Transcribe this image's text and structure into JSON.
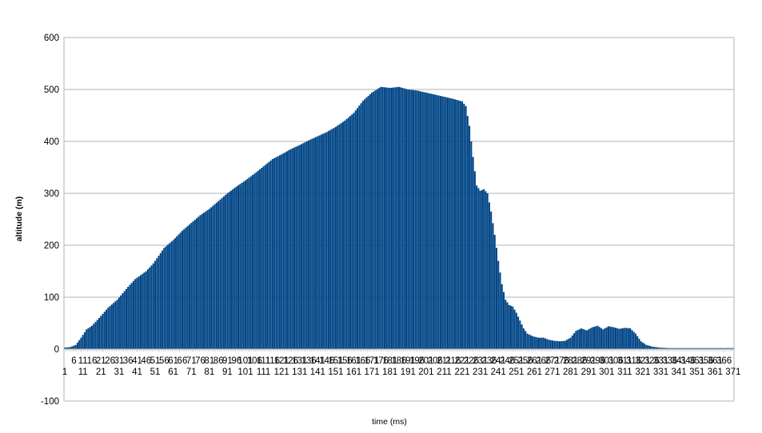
{
  "chart_data": {
    "type": "bar",
    "title": "",
    "xlabel": "time (ms)",
    "ylabel": "altitude (m)",
    "ylim": [
      -100,
      600
    ],
    "yticks": [
      -100,
      0,
      100,
      200,
      300,
      400,
      500,
      600
    ],
    "grid": true,
    "legend": "none",
    "bar_color": "#004586",
    "x": {
      "start": 1,
      "end": 371,
      "step": 1
    },
    "x_tick_labels_row1": [
      6,
      11,
      16,
      21,
      26,
      31,
      36,
      41,
      46,
      51,
      56,
      61,
      66,
      71,
      76,
      81,
      86,
      91,
      96,
      101,
      106,
      111,
      116,
      121,
      126,
      131,
      136,
      141,
      146,
      151,
      156,
      161,
      166,
      171,
      176,
      181,
      186,
      191,
      196,
      201,
      206,
      211,
      216,
      221,
      226,
      231,
      236,
      241,
      246,
      251,
      256,
      261,
      266,
      271,
      276,
      281,
      286,
      291,
      296,
      301,
      306,
      311,
      316,
      321,
      326,
      331,
      336,
      341,
      346,
      351,
      356,
      361,
      366
    ],
    "x_tick_labels_row2": [
      1,
      11,
      21,
      31,
      41,
      51,
      61,
      71,
      81,
      91,
      101,
      111,
      121,
      131,
      141,
      151,
      161,
      171,
      181,
      191,
      201,
      211,
      221,
      231,
      241,
      251,
      261,
      271,
      281,
      291,
      301,
      311,
      321,
      331,
      341,
      351,
      361,
      371
    ],
    "key_points": [
      [
        1,
        3
      ],
      [
        4,
        4
      ],
      [
        7,
        8
      ],
      [
        10,
        22
      ],
      [
        13,
        38
      ],
      [
        16,
        45
      ],
      [
        20,
        60
      ],
      [
        25,
        80
      ],
      [
        30,
        95
      ],
      [
        36,
        120
      ],
      [
        40,
        135
      ],
      [
        46,
        150
      ],
      [
        50,
        165
      ],
      [
        56,
        195
      ],
      [
        61,
        210
      ],
      [
        66,
        228
      ],
      [
        71,
        243
      ],
      [
        76,
        258
      ],
      [
        81,
        270
      ],
      [
        86,
        285
      ],
      [
        91,
        300
      ],
      [
        96,
        313
      ],
      [
        101,
        325
      ],
      [
        106,
        338
      ],
      [
        111,
        352
      ],
      [
        116,
        366
      ],
      [
        121,
        375
      ],
      [
        126,
        385
      ],
      [
        131,
        393
      ],
      [
        136,
        402
      ],
      [
        141,
        410
      ],
      [
        146,
        418
      ],
      [
        151,
        428
      ],
      [
        156,
        440
      ],
      [
        161,
        455
      ],
      [
        166,
        478
      ],
      [
        171,
        494
      ],
      [
        176,
        505
      ],
      [
        181,
        503
      ],
      [
        186,
        505
      ],
      [
        191,
        500
      ],
      [
        196,
        498
      ],
      [
        201,
        494
      ],
      [
        206,
        490
      ],
      [
        211,
        486
      ],
      [
        216,
        482
      ],
      [
        221,
        477
      ],
      [
        223,
        468
      ],
      [
        225,
        430
      ],
      [
        227,
        370
      ],
      [
        229,
        315
      ],
      [
        231,
        305
      ],
      [
        233,
        308
      ],
      [
        235,
        300
      ],
      [
        237,
        265
      ],
      [
        239,
        220
      ],
      [
        241,
        170
      ],
      [
        243,
        125
      ],
      [
        245,
        95
      ],
      [
        247,
        85
      ],
      [
        249,
        82
      ],
      [
        251,
        70
      ],
      [
        253,
        55
      ],
      [
        255,
        40
      ],
      [
        257,
        30
      ],
      [
        260,
        25
      ],
      [
        263,
        22
      ],
      [
        266,
        22
      ],
      [
        269,
        18
      ],
      [
        272,
        16
      ],
      [
        275,
        15
      ],
      [
        278,
        16
      ],
      [
        281,
        22
      ],
      [
        284,
        35
      ],
      [
        287,
        40
      ],
      [
        290,
        36
      ],
      [
        293,
        42
      ],
      [
        296,
        45
      ],
      [
        299,
        38
      ],
      [
        302,
        44
      ],
      [
        305,
        42
      ],
      [
        308,
        39
      ],
      [
        311,
        41
      ],
      [
        314,
        40
      ],
      [
        317,
        30
      ],
      [
        320,
        15
      ],
      [
        323,
        8
      ],
      [
        326,
        5
      ],
      [
        330,
        3
      ],
      [
        335,
        2
      ],
      [
        340,
        2
      ],
      [
        350,
        2
      ],
      [
        360,
        2
      ],
      [
        371,
        2
      ]
    ]
  }
}
